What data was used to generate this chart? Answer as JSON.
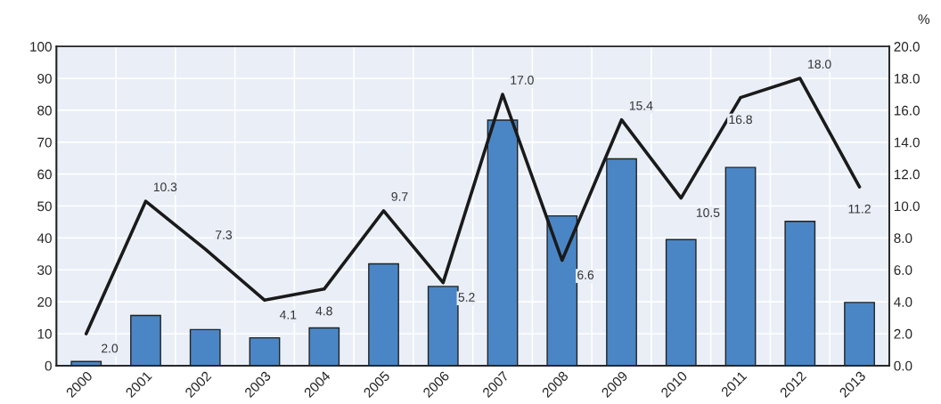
{
  "chart_data": {
    "type": "bar",
    "categories": [
      "2000",
      "2001",
      "2002",
      "2003",
      "2004",
      "2005",
      "2006",
      "2007",
      "2008",
      "2009",
      "2010",
      "2011",
      "2012",
      "2013"
    ],
    "series": [
      {
        "color": "#4a86c5",
        "values": [
          1.3,
          15.7,
          11.3,
          8.7,
          11.8,
          31.9,
          24.8,
          76.9,
          46.9,
          64.8,
          39.5,
          62.1,
          45.2,
          19.8
        ]
      },
      {
        "type": "line",
        "axis": "y2",
        "color": "#1a1a1a",
        "values": [
          2.0,
          10.3,
          7.3,
          4.1,
          4.8,
          9.7,
          5.2,
          17.0,
          6.6,
          15.4,
          10.5,
          16.8,
          18.0,
          11.2
        ],
        "value_labels": [
          "2.0",
          "10.3",
          "7.3",
          "4.1",
          "4.8",
          "9.7",
          "5.2",
          "17.0",
          "6.6",
          "15.4",
          "10.5",
          "16.8",
          "18.0",
          "11.2"
        ]
      }
    ],
    "ylim": [
      0,
      100
    ],
    "yticks": [
      0,
      10,
      20,
      30,
      40,
      50,
      60,
      70,
      80,
      90,
      100
    ],
    "y2lim": [
      0,
      20
    ],
    "y2ticks": [
      {
        "value": 0,
        "label": "0.0"
      },
      {
        "value": 2,
        "label": "2.0"
      },
      {
        "value": 4,
        "label": "4.0"
      },
      {
        "value": 6,
        "label": "6.0"
      },
      {
        "value": 8,
        "label": "8.0"
      },
      {
        "value": 10,
        "label": "10.0"
      },
      {
        "value": 12,
        "label": "12.0"
      },
      {
        "value": 14,
        "label": "14.0"
      },
      {
        "value": 16,
        "label": "16.0"
      },
      {
        "value": 18,
        "label": "18.0"
      },
      {
        "value": 20,
        "label": "20.0"
      }
    ],
    "y2label": "%",
    "grid": true,
    "legend": false
  }
}
